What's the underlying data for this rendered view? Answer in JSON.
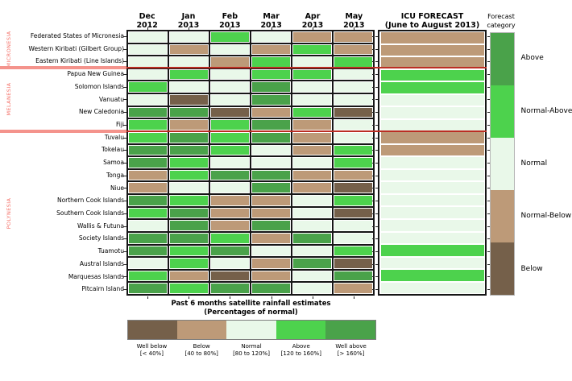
{
  "palette": {
    "well_below": "#75604a",
    "below": "#bd9a78",
    "normal": "#e9f8e9",
    "above": "#4dd24d",
    "well_above": "#4aa24a",
    "region_label_color": "#f4726a",
    "separator_band_color": "#f4938c",
    "separator_line_color": "#bb2d23"
  },
  "chart_data": {
    "type": "heatmap",
    "title": "Past 6 months satellite rainfall estimates",
    "subtitle": "(Percentages of normal)",
    "columns": [
      {
        "month": "Dec",
        "year": "2012"
      },
      {
        "month": "Jan",
        "year": "2013"
      },
      {
        "month": "Feb",
        "year": "2013"
      },
      {
        "month": "Mar",
        "year": "2013"
      },
      {
        "month": "Apr",
        "year": "2013"
      },
      {
        "month": "May",
        "year": "2013"
      }
    ],
    "icu_header": {
      "line1": "ICU FORECAST",
      "line2": "(June to August 2013)"
    },
    "forecast_header": {
      "line1": "Forecast",
      "line2": "category"
    },
    "regions": [
      {
        "name": "MICRONESIA",
        "row_start": 0,
        "row_end": 2
      },
      {
        "name": "MELANESIA",
        "row_start": 3,
        "row_end": 7
      },
      {
        "name": "POLYNESIA",
        "row_start": 8,
        "row_end": 20
      }
    ],
    "rows": [
      {
        "name": "Federated States of Micronesia",
        "values": [
          "normal",
          "normal",
          "above",
          "normal",
          "below",
          "below"
        ],
        "icu": "below"
      },
      {
        "name": "Western Kiribati (Gilbert Group)",
        "values": [
          "normal",
          "below",
          "normal",
          "below",
          "above",
          "below"
        ],
        "icu": "below"
      },
      {
        "name": "Eastern Kiribati (Line Islands)",
        "values": [
          "normal",
          "normal",
          "below",
          "above",
          "normal",
          "above"
        ],
        "icu": "below"
      },
      {
        "name": "Papua New Guinea",
        "values": [
          "normal",
          "above",
          "normal",
          "above",
          "above",
          "normal"
        ],
        "icu": "above"
      },
      {
        "name": "Solomon Islands",
        "values": [
          "above",
          "normal",
          "normal",
          "well_above",
          "normal",
          "normal"
        ],
        "icu": "above"
      },
      {
        "name": "Vanuatu",
        "values": [
          "normal",
          "well_below",
          "normal",
          "well_above",
          "normal",
          "normal"
        ],
        "icu": "normal"
      },
      {
        "name": "New Caledonia",
        "values": [
          "well_above",
          "well_above",
          "well_below",
          "below",
          "above",
          "well_below"
        ],
        "icu": "normal"
      },
      {
        "name": "Fiji",
        "values": [
          "above",
          "below",
          "above",
          "well_above",
          "below",
          "normal"
        ],
        "icu": "normal"
      },
      {
        "name": "Tuvalu",
        "values": [
          "above",
          "well_above",
          "above",
          "well_above",
          "below",
          "normal"
        ],
        "icu": "below"
      },
      {
        "name": "Tokelau",
        "values": [
          "well_above",
          "well_above",
          "above",
          "normal",
          "below",
          "above"
        ],
        "icu": "below"
      },
      {
        "name": "Samoa",
        "values": [
          "well_above",
          "above",
          "normal",
          "normal",
          "normal",
          "above"
        ],
        "icu": "normal"
      },
      {
        "name": "Tonga",
        "values": [
          "below",
          "above",
          "well_above",
          "well_above",
          "below",
          "below"
        ],
        "icu": "normal"
      },
      {
        "name": "Niue",
        "values": [
          "below",
          "normal",
          "normal",
          "well_above",
          "below",
          "well_below"
        ],
        "icu": "normal"
      },
      {
        "name": "Northern Cook Islands",
        "values": [
          "well_above",
          "above",
          "below",
          "below",
          "normal",
          "above"
        ],
        "icu": "normal"
      },
      {
        "name": "Southern Cook Islands",
        "values": [
          "above",
          "well_above",
          "below",
          "below",
          "normal",
          "well_below"
        ],
        "icu": "normal"
      },
      {
        "name": "Wallis & Futuna",
        "values": [
          "normal",
          "well_above",
          "below",
          "well_above",
          "normal",
          "normal"
        ],
        "icu": "normal"
      },
      {
        "name": "Society Islands",
        "values": [
          "well_above",
          "well_above",
          "above",
          "below",
          "well_above",
          "normal"
        ],
        "icu": "normal"
      },
      {
        "name": "Tuamotu",
        "values": [
          "well_above",
          "above",
          "well_above",
          "normal",
          "normal",
          "above"
        ],
        "icu": "above"
      },
      {
        "name": "Austral Islands",
        "values": [
          "normal",
          "above",
          "normal",
          "below",
          "well_above",
          "well_below"
        ],
        "icu": "normal"
      },
      {
        "name": "Marquesas Islands",
        "values": [
          "above",
          "below",
          "well_below",
          "below",
          "normal",
          "well_above"
        ],
        "icu": "above"
      },
      {
        "name": "Pitcairn Island",
        "values": [
          "well_above",
          "above",
          "well_above",
          "well_above",
          "normal",
          "below"
        ],
        "icu": "normal"
      }
    ],
    "forecast_categories": [
      {
        "label": "Above",
        "key": "well_above"
      },
      {
        "label": "Normal-Above",
        "key": "above"
      },
      {
        "label": "Normal",
        "key": "normal"
      },
      {
        "label": "Normal-Below",
        "key": "below"
      },
      {
        "label": "Below",
        "key": "well_below"
      }
    ],
    "value_scale": [
      {
        "key": "well_below",
        "label": "Well below",
        "range": "[< 40%]"
      },
      {
        "key": "below",
        "label": "Below",
        "range": "[40 to 80%]"
      },
      {
        "key": "normal",
        "label": "Normal",
        "range": "[80 to 120%]"
      },
      {
        "key": "above",
        "label": "Above",
        "range": "[120 to 160%]"
      },
      {
        "key": "well_above",
        "label": "Well above",
        "range": "[> 160%]"
      }
    ]
  }
}
